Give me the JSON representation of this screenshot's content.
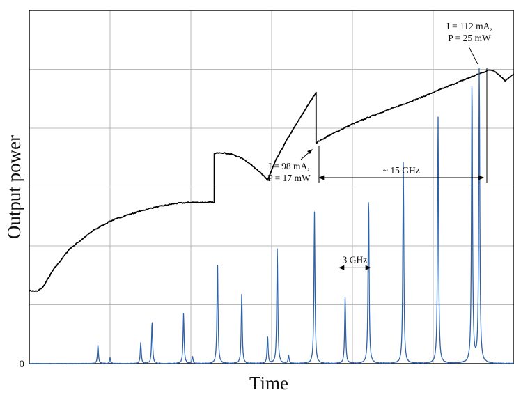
{
  "chart_data": {
    "type": "line",
    "xlabel": "Time",
    "ylabel": "Output power",
    "y_tick_labels": [
      "0"
    ],
    "grid": true,
    "grid_divisions": {
      "x": 6,
      "y": 6
    },
    "ylim": [
      0,
      6
    ],
    "xlim": [
      0,
      6
    ],
    "series": [
      {
        "color": "#000000",
        "points": [
          [
            0.0,
            1.24
          ],
          [
            0.1,
            1.23
          ],
          [
            0.17,
            1.3
          ],
          [
            0.3,
            1.6
          ],
          [
            0.5,
            1.95
          ],
          [
            0.8,
            2.27
          ],
          [
            1.0,
            2.42
          ],
          [
            1.2,
            2.52
          ],
          [
            1.5,
            2.64
          ],
          [
            1.8,
            2.72
          ],
          [
            2.0,
            2.74
          ],
          [
            2.2,
            2.74
          ],
          [
            2.29,
            2.74
          ],
          [
            2.29,
            3.56
          ],
          [
            2.35,
            3.59
          ],
          [
            2.5,
            3.56
          ],
          [
            2.65,
            3.48
          ],
          [
            2.82,
            3.3
          ],
          [
            2.95,
            3.12
          ],
          [
            3.05,
            3.45
          ],
          [
            3.2,
            3.83
          ],
          [
            3.4,
            4.28
          ],
          [
            3.55,
            4.61
          ],
          [
            3.55,
            3.75
          ],
          [
            3.7,
            3.87
          ],
          [
            4.0,
            4.07
          ],
          [
            4.3,
            4.24
          ],
          [
            4.6,
            4.39
          ],
          [
            4.9,
            4.55
          ],
          [
            5.2,
            4.72
          ],
          [
            5.45,
            4.86
          ],
          [
            5.6,
            4.94
          ],
          [
            5.7,
            4.99
          ],
          [
            5.75,
            4.98
          ],
          [
            5.82,
            4.9
          ],
          [
            5.89,
            4.81
          ],
          [
            5.95,
            4.87
          ],
          [
            6.0,
            4.92
          ]
        ]
      },
      {
        "color": "#2f62a8",
        "baseline": 0.0,
        "peaks": [
          [
            0.85,
            0.32
          ],
          [
            1.0,
            0.1
          ],
          [
            1.38,
            0.36
          ],
          [
            1.52,
            0.72
          ],
          [
            1.91,
            0.85
          ],
          [
            2.02,
            0.12
          ],
          [
            2.33,
            1.78
          ],
          [
            2.63,
            1.18
          ],
          [
            2.95,
            0.47
          ],
          [
            3.07,
            1.98
          ],
          [
            3.21,
            0.14
          ],
          [
            3.53,
            2.58
          ],
          [
            3.91,
            1.13
          ],
          [
            4.2,
            2.88
          ],
          [
            4.63,
            3.45
          ],
          [
            5.06,
            4.19
          ],
          [
            5.48,
            4.88
          ],
          [
            5.57,
            5.07
          ]
        ]
      }
    ],
    "annotations": [
      {
        "text_lines": [
          "I = 112 mA,",
          "P = 25 mW"
        ],
        "x": 5.7,
        "y": 5.73
      },
      {
        "text_lines": [
          "I = 98 mA,",
          "P = 17 mW"
        ],
        "x": 3.45,
        "y": 3.4
      },
      {
        "text": "~ 15 GHz",
        "x_range": [
          3.58,
          5.63
        ],
        "y": 3.16
      },
      {
        "text": "3 GHz",
        "x_range": [
          3.83,
          4.23
        ],
        "y": 1.63
      }
    ]
  }
}
